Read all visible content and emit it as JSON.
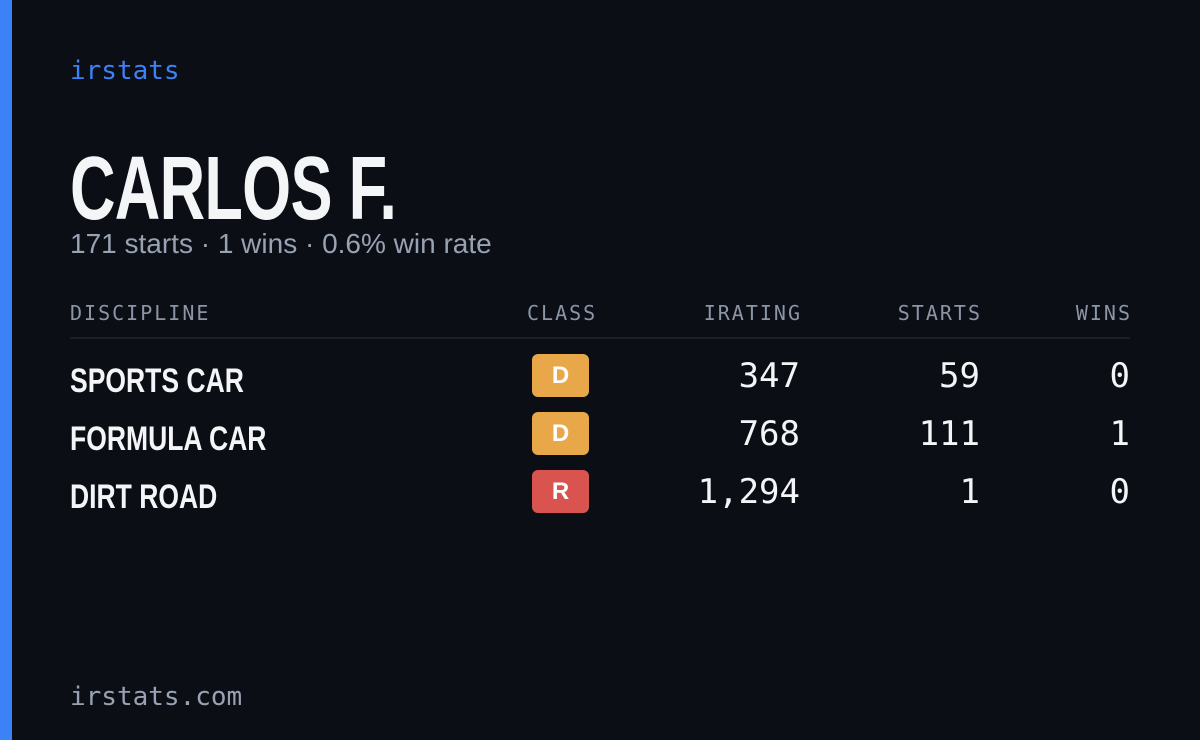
{
  "brand": "irstats",
  "driver": {
    "name": "CARLOS F.",
    "summary": "171 starts · 1 wins · 0.6% win rate"
  },
  "table": {
    "headers": [
      "DISCIPLINE",
      "CLASS",
      "IRATING",
      "STARTS",
      "WINS"
    ],
    "rows": [
      [
        "SPORTS CAR",
        "D",
        "347",
        "59",
        "0"
      ],
      [
        "FORMULA CAR",
        "D",
        "768",
        "111",
        "1"
      ],
      [
        "DIRT ROAD",
        "R",
        "1,294",
        "1",
        "0"
      ]
    ]
  },
  "footer": "irstats.com"
}
